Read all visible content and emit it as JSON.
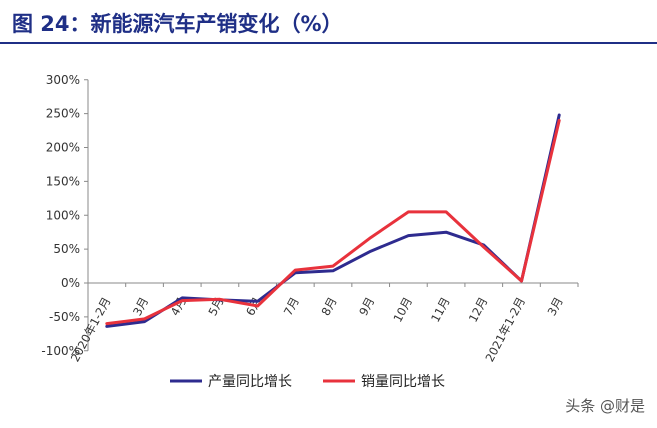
{
  "title": "图 24：新能源汽车产销变化（%）",
  "watermark": "头条 @财是",
  "chart_data": {
    "type": "line",
    "x": [
      "2020年1-2月",
      "3月",
      "4月",
      "5月",
      "6月",
      "7月",
      "8月",
      "9月",
      "10月",
      "11月",
      "12月",
      "2021年1-2月",
      "3月"
    ],
    "series": [
      {
        "name": "产量同比增长",
        "color": "#2e2b8f",
        "values": [
          -64,
          -57,
          -22,
          -25,
          -27,
          15,
          18,
          47,
          70,
          75,
          56,
          3,
          248
        ]
      },
      {
        "name": "销量同比增长",
        "color": "#e8323c",
        "values": [
          -60,
          -53,
          -26,
          -24,
          -34,
          19,
          25,
          67,
          105,
          105,
          53,
          3,
          240
        ]
      }
    ],
    "y_ticks": [
      "-100%",
      "-50%",
      "0%",
      "50%",
      "100%",
      "150%",
      "200%",
      "250%",
      "300%"
    ],
    "ylim": [
      -100,
      300
    ],
    "grid": false,
    "legend_position": "bottom"
  }
}
